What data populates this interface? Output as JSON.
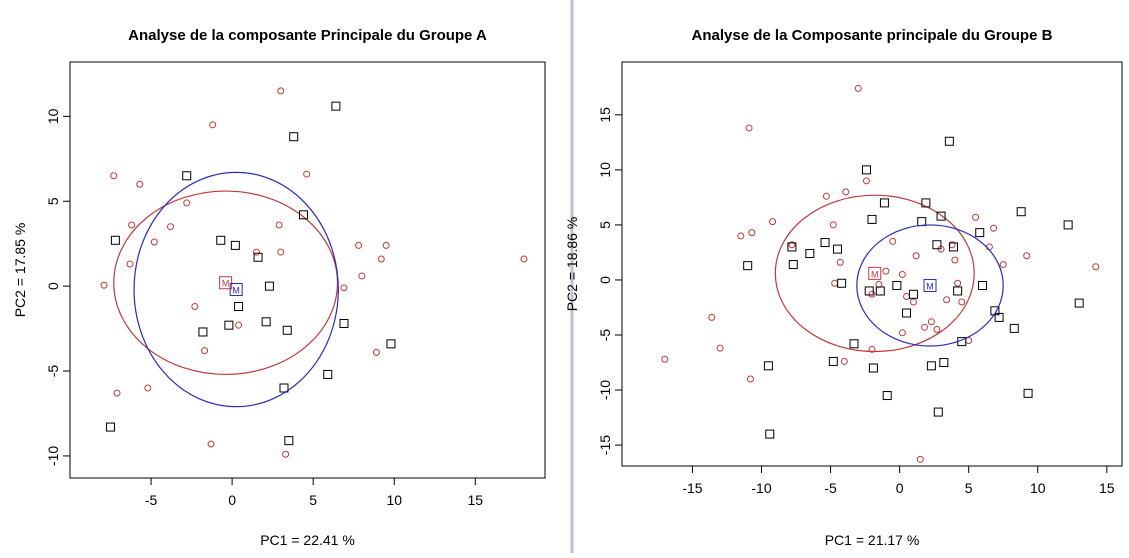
{
  "chart_data": [
    {
      "type": "scatter",
      "title": "Analyse de la composante Principale du Groupe A",
      "xlabel": "PC1 = 22.41  %",
      "ylabel": "PC2 = 17.85  %",
      "xlim": [
        -10,
        19.3
      ],
      "ylim": [
        -11.3,
        13.2
      ],
      "xticks": [
        -5,
        0,
        5,
        10,
        15
      ],
      "yticks": [
        -10,
        -5,
        0,
        5,
        10
      ],
      "series": [
        {
          "marker": "circle",
          "color": "#c0393b",
          "x": [
            3.0,
            -1.2,
            -7.3,
            4.6,
            -5.7,
            -6.2,
            -2.8,
            -3.8,
            -4.8,
            -6.3,
            -7.9,
            2.9,
            1.5,
            3.0,
            7.8,
            9.5,
            9.2,
            8.0,
            6.9,
            18.0,
            -2.3,
            0.4,
            -1.7,
            8.9,
            -7.1,
            -5.2,
            -1.3,
            3.3
          ],
          "y": [
            11.5,
            9.5,
            6.5,
            6.6,
            6.0,
            3.6,
            4.9,
            3.5,
            2.6,
            1.3,
            0.05,
            3.6,
            2.0,
            2.0,
            2.4,
            2.4,
            1.6,
            0.6,
            -0.1,
            1.6,
            -1.2,
            -2.3,
            -3.8,
            -3.9,
            -6.3,
            -6.0,
            -9.3,
            -9.9
          ],
          "center": {
            "x": -0.4,
            "y": 0.2,
            "label": "M"
          },
          "ellipse": {
            "rx": 6.9,
            "ry": 5.4
          }
        },
        {
          "marker": "square",
          "color": "#000000",
          "x": [
            6.4,
            3.8,
            -2.8,
            4.4,
            -7.2,
            -0.7,
            0.2,
            1.6,
            2.3,
            0.4,
            -0.2,
            -1.8,
            2.1,
            3.4,
            6.9,
            9.8,
            5.9,
            3.2,
            -7.5,
            3.5
          ],
          "y": [
            10.6,
            8.8,
            6.5,
            4.2,
            2.7,
            2.7,
            2.4,
            1.7,
            0.0,
            -1.2,
            -2.3,
            -2.7,
            -2.1,
            -2.6,
            -2.2,
            -3.4,
            -5.2,
            -6.0,
            -8.3,
            -9.1
          ],
          "center": {
            "x": 0.25,
            "y": -0.2,
            "label": "M",
            "color": "#2b2bb8"
          },
          "ellipse": {
            "rx": 6.3,
            "ry": 6.9,
            "color": "#2b2bb8"
          }
        }
      ]
    },
    {
      "type": "scatter",
      "title": "Analyse de la Composante principale du Groupe B",
      "xlabel": "PC1 = 21.17  %",
      "ylabel": "PC2 = 18.86  %",
      "xlim": [
        -20.1,
        16.1
      ],
      "ylim": [
        -16.9,
        19.8
      ],
      "xticks": [
        -15,
        -10,
        -5,
        0,
        5,
        10,
        15
      ],
      "yticks": [
        -15,
        -10,
        -5,
        0,
        5,
        10,
        15
      ],
      "series": [
        {
          "marker": "circle",
          "color": "#c0393b",
          "x": [
            -17.0,
            -13.6,
            -13.0,
            -11.5,
            -10.7,
            -10.8,
            -10.9,
            -9.2,
            -7.8,
            -5.3,
            -4.8,
            -4.7,
            -4.3,
            -4.0,
            -3.9,
            -3.0,
            -2.4,
            -2.0,
            -1.5,
            -1.0,
            -0.5,
            0.2,
            0.5,
            1.0,
            1.2,
            1.5,
            1.8,
            2.3,
            2.7,
            3.0,
            3.4,
            3.8,
            4.0,
            4.2,
            4.5,
            5.0,
            5.5,
            6.5,
            6.8,
            7.5,
            9.2,
            14.2,
            -2.0,
            0.2
          ],
          "y": [
            -7.2,
            -3.4,
            -6.2,
            4.0,
            4.3,
            -9.0,
            13.8,
            5.3,
            3.2,
            7.6,
            5.0,
            -0.3,
            1.6,
            -7.4,
            8.0,
            17.4,
            9.0,
            -1.3,
            -0.4,
            0.8,
            3.5,
            0.5,
            -1.5,
            -2.0,
            2.2,
            -16.3,
            -4.3,
            -3.8,
            -4.5,
            2.8,
            -1.8,
            3.2,
            1.8,
            -0.3,
            -2.0,
            -5.5,
            5.7,
            3.0,
            4.7,
            1.4,
            2.2,
            1.2,
            -6.3,
            -4.8
          ],
          "center": {
            "x": -1.8,
            "y": 0.6,
            "label": "M"
          },
          "ellipse": {
            "rx": 7.2,
            "ry": 7.1
          }
        },
        {
          "marker": "square",
          "color": "#000000",
          "x": [
            -11.0,
            -9.5,
            -9.4,
            -7.8,
            -7.7,
            -6.5,
            -5.4,
            -4.8,
            -4.5,
            -4.2,
            -3.3,
            -2.4,
            -2.2,
            -2.0,
            -1.9,
            -1.4,
            -1.1,
            -0.9,
            -0.2,
            0.5,
            1.0,
            1.6,
            1.9,
            2.3,
            2.7,
            3.0,
            3.2,
            3.6,
            3.9,
            4.2,
            4.5,
            2.8,
            5.8,
            6.0,
            6.9,
            7.2,
            8.3,
            8.8,
            9.3,
            12.2,
            13.0
          ],
          "y": [
            1.3,
            -7.8,
            -14.0,
            3.0,
            1.4,
            2.4,
            3.4,
            -7.4,
            2.8,
            -0.3,
            -5.8,
            10.0,
            -1.0,
            5.5,
            -8.0,
            -1.0,
            7.0,
            -10.5,
            -0.5,
            -3.0,
            -1.3,
            5.3,
            7.0,
            -7.8,
            3.2,
            5.8,
            -7.5,
            12.6,
            3.0,
            -1.0,
            -5.6,
            -12.0,
            4.3,
            -0.5,
            -2.8,
            -3.4,
            -4.4,
            6.2,
            -10.3,
            5.0,
            -2.1
          ],
          "center": {
            "x": 2.2,
            "y": -0.5,
            "label": "M",
            "color": "#2b2bb8"
          },
          "ellipse": {
            "rx": 5.3,
            "ry": 5.5,
            "color": "#2b2bb8"
          }
        }
      ]
    }
  ]
}
